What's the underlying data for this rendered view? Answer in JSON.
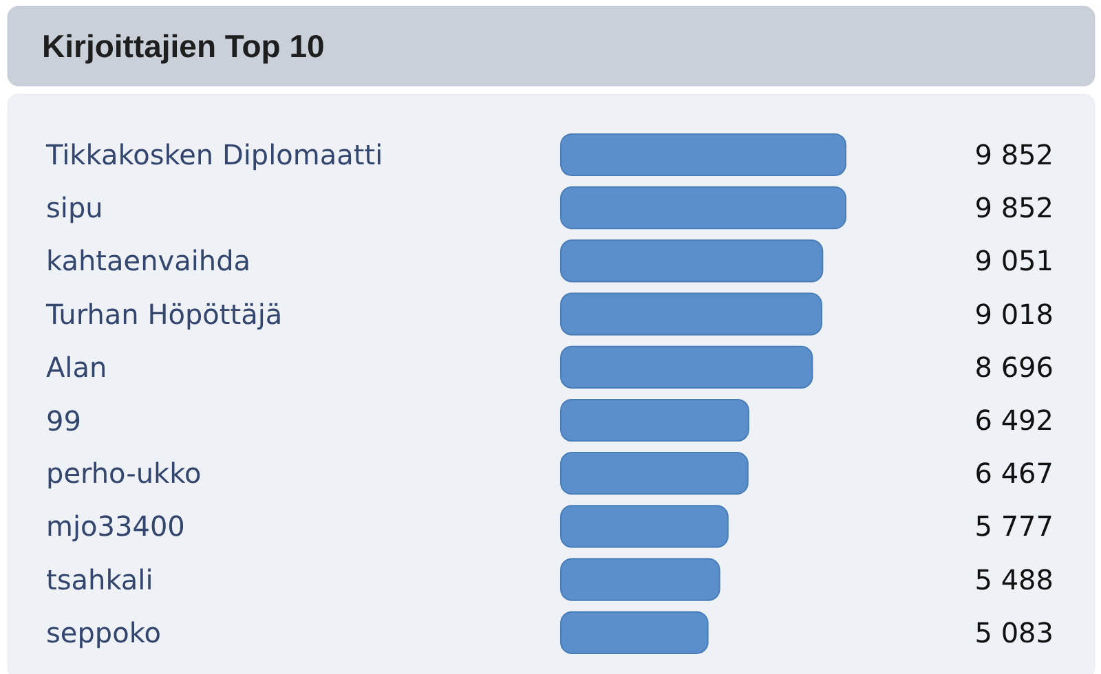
{
  "chart_data": {
    "type": "bar",
    "orientation": "horizontal",
    "title": "Kirjoittajien Top 10",
    "categories": [
      "Tikkakosken Diplomaatti",
      "sipu",
      "kahtaenvaihda",
      "Turhan Höpöttäjä",
      "Alan",
      "99",
      "perho-ukko",
      "mjo33400",
      "tsahkali",
      "seppoko"
    ],
    "values": [
      9852,
      9852,
      9051,
      9018,
      8696,
      6492,
      6467,
      5777,
      5488,
      5083
    ],
    "value_labels": [
      "9 852",
      "9 852",
      "9 051",
      "9 018",
      "8 696",
      "6 492",
      "6 467",
      "5 777",
      "5 488",
      "5 083"
    ],
    "color": "#5b8fcb"
  }
}
